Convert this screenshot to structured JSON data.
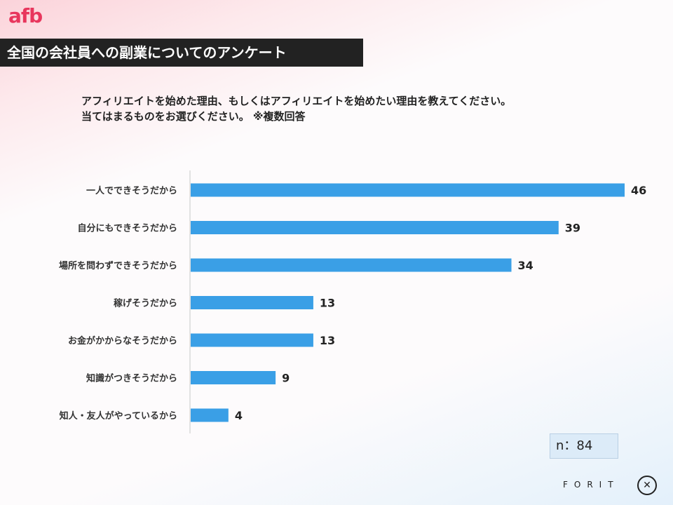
{
  "header": {
    "logo_text": "afb",
    "title": "全国の会社員への副業についてのアンケート"
  },
  "question": {
    "line1": "アフィリエイトを始めた理由、もしくはアフィリエイトを始めたい理由を教えてください。",
    "line2": "当てはまるものをお選びください。 ※複数回答"
  },
  "sample_size": "n：84",
  "footer": {
    "brand": "FORIT",
    "icon": "runner-circle-icon"
  },
  "colors": {
    "bar": "#3a9fe6",
    "title_bg": "#222222",
    "logo": "#e8365d"
  },
  "chart_data": {
    "type": "bar",
    "orientation": "horizontal",
    "categories": [
      "一人でできそうだから",
      "自分にもできそうだから",
      "場所を問わずできそうだから",
      "稼げそうだから",
      "お金がかからなそうだから",
      "知識がつきそうだから",
      "知人・友人がやっているから"
    ],
    "values": [
      46,
      39,
      34,
      13,
      13,
      9,
      4
    ],
    "xlim": [
      0,
      46
    ],
    "grid": false,
    "data_labels": true
  }
}
